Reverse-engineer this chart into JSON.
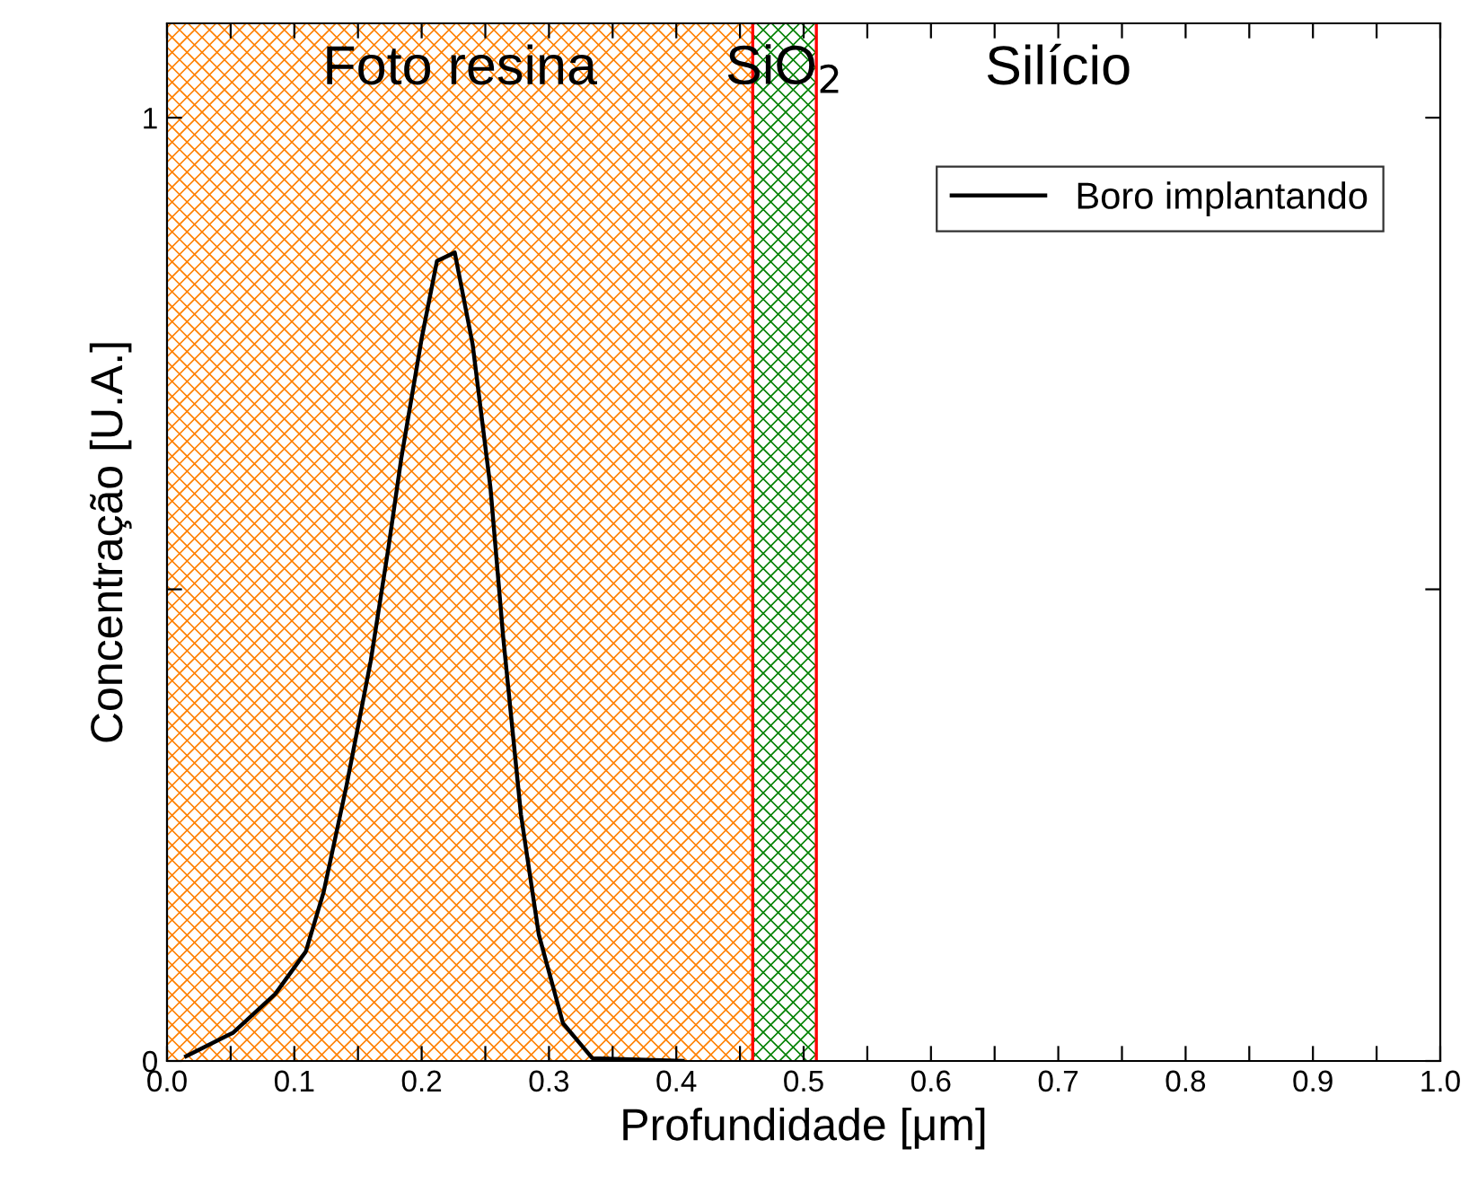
{
  "chart_data": {
    "type": "line",
    "xlabel": "Profundidade [μm]",
    "ylabel": "Concentração [U.A.]",
    "series": [
      {
        "name": "Boro implantando",
        "color": "#000000",
        "x": [
          0.015,
          0.052,
          0.085,
          0.109,
          0.123,
          0.141,
          0.16,
          0.174,
          0.184,
          0.2,
          0.212,
          0.226,
          0.24,
          0.254,
          0.264,
          0.278,
          0.292,
          0.311,
          0.334,
          0.405
        ],
        "values": [
          0.005,
          0.03,
          0.071,
          0.116,
          0.179,
          0.292,
          0.424,
          0.545,
          0.639,
          0.766,
          0.848,
          0.857,
          0.76,
          0.608,
          0.45,
          0.261,
          0.134,
          0.04,
          0.003,
          0.0
        ]
      }
    ],
    "xlim": [
      0,
      1
    ],
    "ylim": [
      0,
      1.1
    ],
    "xticks": [
      {
        "value": 0,
        "label": "0.0"
      },
      {
        "value": 0.05,
        "label": null
      },
      0.1,
      {
        "value": 0.15,
        "label": null
      },
      0.2,
      {
        "value": 0.25,
        "label": null
      },
      0.3,
      {
        "value": 0.35,
        "label": null
      },
      0.4,
      {
        "value": 0.45,
        "label": null
      },
      0.5,
      {
        "value": 0.55,
        "label": null
      },
      0.6,
      {
        "value": 0.65,
        "label": null
      },
      0.7,
      {
        "value": 0.75,
        "label": null
      },
      0.8,
      {
        "value": 0.85,
        "label": null
      },
      0.9,
      {
        "value": 0.95,
        "label": null
      },
      {
        "value": 1,
        "label": "1.0"
      }
    ],
    "yticks": [
      0,
      {
        "value": 0.5,
        "label": null
      },
      1
    ],
    "bands": [
      {
        "axis": "x",
        "from": 0,
        "to": 0.46,
        "label": "Foto resina",
        "color": "#ff8000"
      },
      {
        "axis": "x",
        "from": 0.46,
        "to": 0.51,
        "label": "SiO$_{2}$",
        "color": "#008000"
      }
    ],
    "annotations": [
      "Silício"
    ],
    "ref_lines": [
      {
        "axis": "x",
        "value": 0.46,
        "color": "#ff0000"
      },
      {
        "axis": "x",
        "value": 0.51,
        "color": "#ff0000"
      }
    ],
    "legend": "top right",
    "grid": false,
    "line_style": "solid",
    "marker": "none"
  }
}
